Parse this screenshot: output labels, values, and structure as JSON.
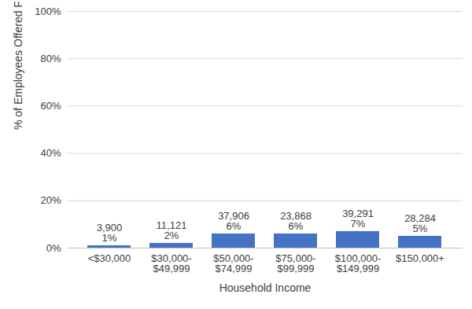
{
  "chart_data": {
    "type": "bar",
    "x_label": "Household Income",
    "y_label": "% of Employees Offered Free Parking",
    "categories": [
      "<$30,000",
      "$30,000-$49,999",
      "$50,000-$74,999",
      "$75,000-$99,999",
      "$100,000-$149,999",
      "$150,000+"
    ],
    "values": [
      1,
      2,
      6,
      6,
      7,
      5
    ],
    "value_labels": [
      "1%",
      "2%",
      "6%",
      "6%",
      "7%",
      "5%"
    ],
    "counts": [
      3900,
      11121,
      37906,
      23868,
      39291,
      28284
    ],
    "color": "#4472c4",
    "ylim": [
      0,
      100
    ],
    "yticks": [
      {
        "value": 0,
        "label": "0%"
      },
      {
        "value": 20,
        "label": "20%"
      },
      {
        "value": 40,
        "label": "40%"
      },
      {
        "value": 60,
        "label": "60%"
      },
      {
        "value": 80,
        "label": "80%"
      },
      {
        "value": 100,
        "label": "100%"
      }
    ],
    "grid": true,
    "data_labels": true
  }
}
